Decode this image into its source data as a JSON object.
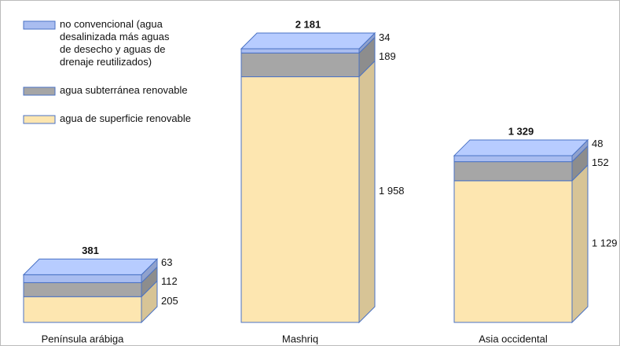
{
  "chart_data": {
    "type": "bar3d-stacked",
    "categories": [
      "Península arábiga",
      "Mashriq",
      "Asia occidental"
    ],
    "series": [
      {
        "name": "no convencional (agua\ndesalinizada más aguas\nde desecho y aguas de\ndrenaje reutilizados)",
        "color": "#a9bdf0",
        "values": [
          63,
          34,
          48
        ]
      },
      {
        "name": "agua subterránea renovable",
        "color": "#a6a6a6",
        "values": [
          112,
          189,
          152
        ]
      },
      {
        "name": "agua de superficie renovable",
        "color": "#fde6b0",
        "values": [
          205,
          1958,
          1129
        ],
        "value_labels": [
          "205",
          "1 958",
          "1 129"
        ]
      }
    ],
    "totals": [
      381,
      2181,
      1329
    ],
    "totals_labels": [
      "381",
      "2 181",
      "1 329"
    ]
  }
}
